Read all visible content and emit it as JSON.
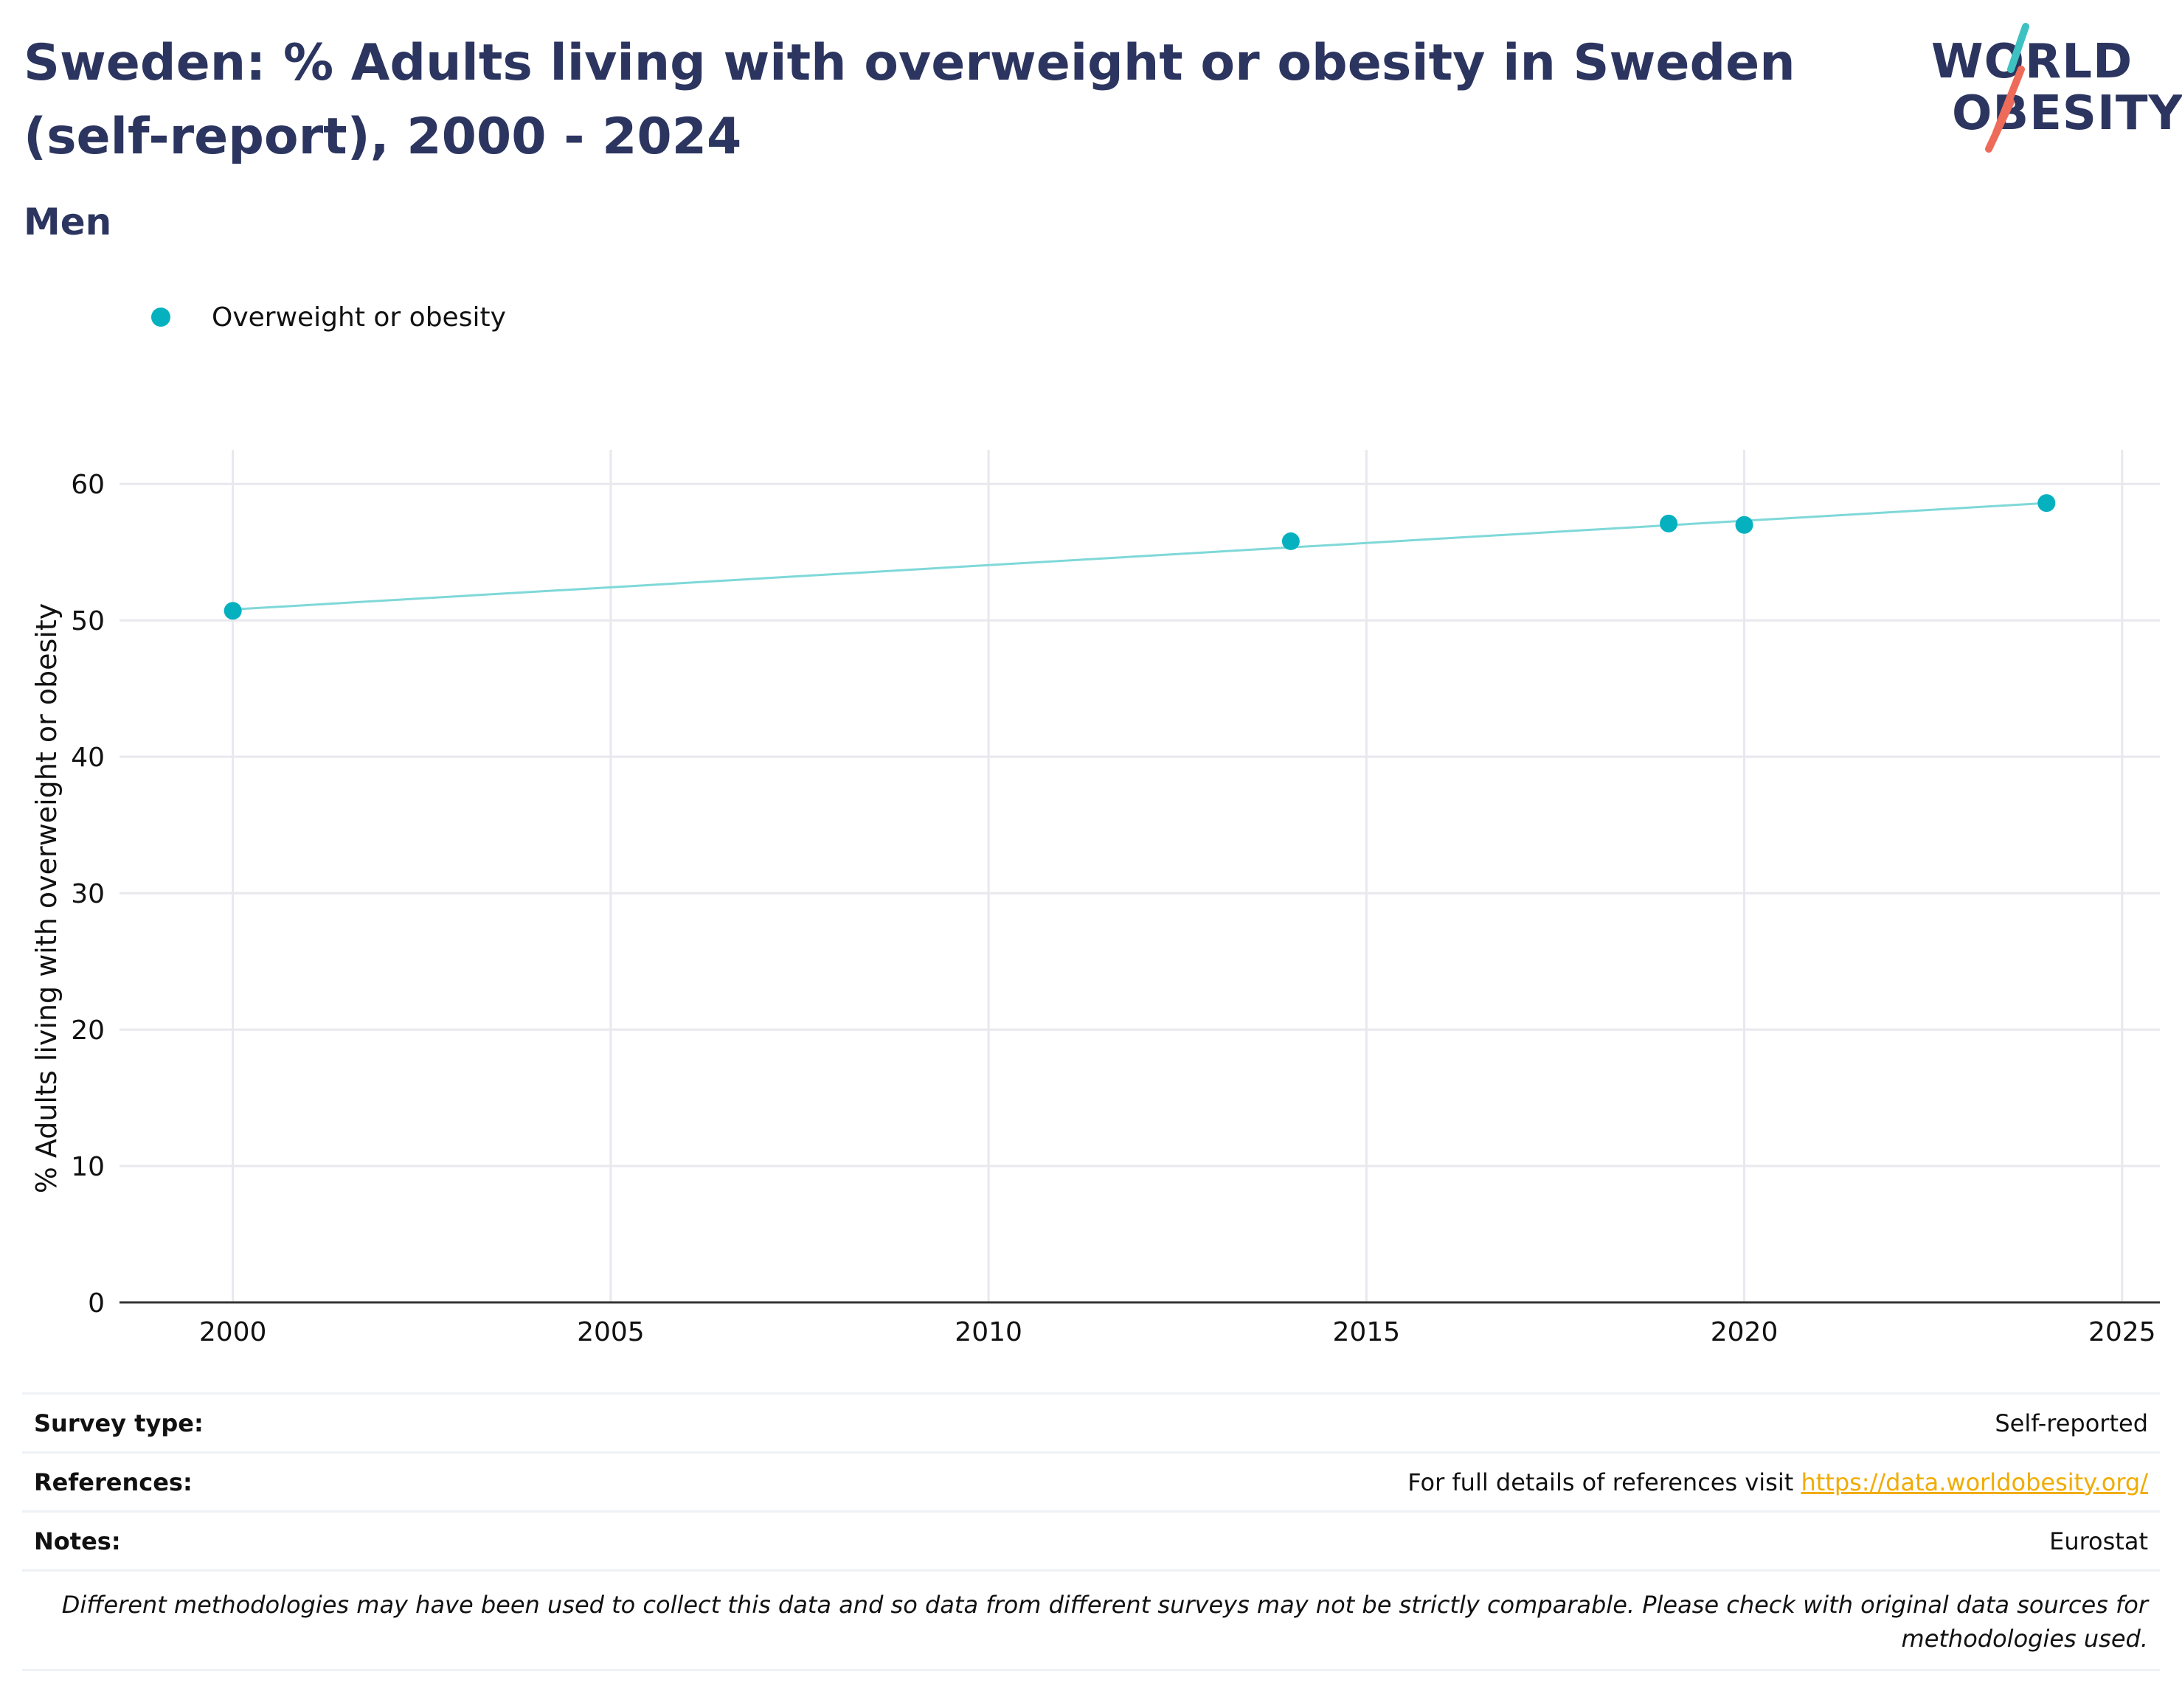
{
  "header": {
    "title": "Sweden: % Adults living with overweight or obesity in Sweden (self-report), 2000 - 2024",
    "subtitle": "Men"
  },
  "logo": {
    "line1": "WORLD",
    "line2": "OBESITY",
    "accent_colors": [
      "#3ec1c1",
      "#ee6b5a"
    ]
  },
  "legend": {
    "label": "Overweight or obesity",
    "color": "#05b1bf"
  },
  "chart_data": {
    "type": "line",
    "series": [
      {
        "name": "Overweight or obesity",
        "color": "#05b1bf",
        "line_color": "#7fd8d8",
        "x": [
          2000,
          2014,
          2019,
          2020,
          2024
        ],
        "y": [
          50.7,
          55.8,
          57.1,
          57.0,
          58.6
        ]
      }
    ],
    "fit_line": {
      "x": [
        2000,
        2024
      ],
      "y": [
        50.8,
        58.6
      ]
    },
    "xlim": [
      1998.5,
      2025.5
    ],
    "ylim": [
      0,
      62.5
    ],
    "xticks": [
      2000,
      2005,
      2010,
      2015,
      2020,
      2025
    ],
    "yticks": [
      0,
      10,
      20,
      30,
      40,
      50,
      60
    ],
    "ylabel": "% Adults living with overweight or obesity",
    "xlabel": "",
    "grid": true
  },
  "footer": {
    "rows": [
      {
        "label": "Survey type:",
        "value": "Self-reported"
      },
      {
        "label": "References:",
        "value": "For full details of references visit",
        "link": "https://data.worldobesity.org/"
      },
      {
        "label": "Notes:",
        "value": "Eurostat"
      }
    ],
    "disclaimer": "Different methodologies may have been used to collect this data and so data from different surveys may not be strictly comparable. Please check with original data sources for methodologies used."
  }
}
